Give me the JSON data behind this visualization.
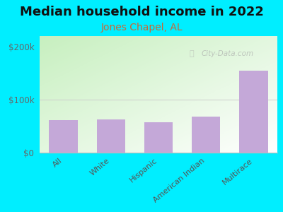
{
  "title": "Median household income in 2022",
  "subtitle": "Jones Chapel, AL",
  "categories": [
    "All",
    "White",
    "Hispanic",
    "American Indian",
    "Multirace"
  ],
  "values": [
    62000,
    63000,
    58000,
    68000,
    155000
  ],
  "bar_color": "#c4a8d8",
  "bar_edgecolor": "#c4a8d8",
  "background_outer": "#00eeff",
  "title_fontsize": 13,
  "subtitle_fontsize": 10,
  "subtitle_color": "#cc6633",
  "axis_label_color": "#555555",
  "tick_color": "#666666",
  "ylim": [
    0,
    220000
  ],
  "yticks": [
    0,
    100000,
    200000
  ],
  "ytick_labels": [
    "$0",
    "$100k",
    "$200k"
  ],
  "watermark": "City-Data.com",
  "grad_top_left": "#c8e8c0",
  "grad_bottom_right": "#f0faf0"
}
